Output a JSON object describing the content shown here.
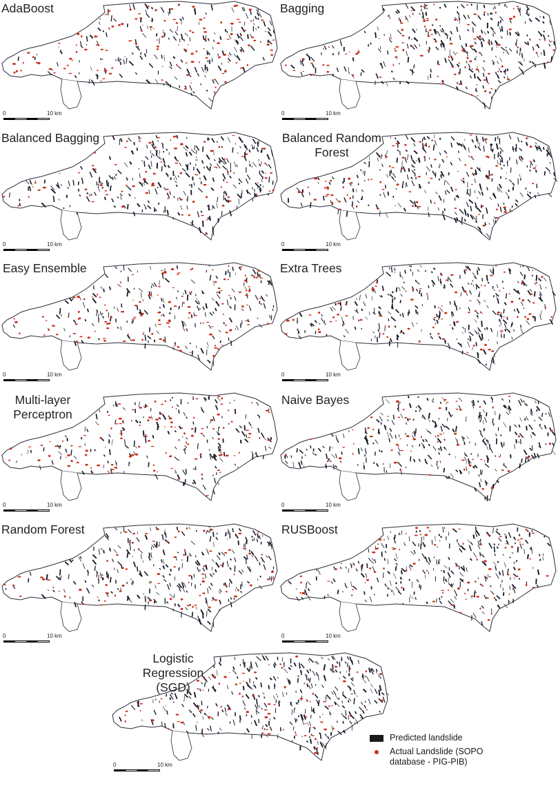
{
  "panels": [
    {
      "title": "AdaBoost",
      "density": 0.55,
      "red": 0.55,
      "seed": 11
    },
    {
      "title": "Bagging",
      "density": 0.7,
      "red": 0.45,
      "seed": 23
    },
    {
      "title": "Balanced Bagging",
      "density": 0.8,
      "red": 0.35,
      "seed": 37
    },
    {
      "title": "Balanced Random Forest",
      "density": 0.8,
      "red": 0.35,
      "seed": 41
    },
    {
      "title": "Easy Ensemble",
      "density": 0.5,
      "red": 0.6,
      "seed": 53
    },
    {
      "title": "Extra Trees",
      "density": 0.75,
      "red": 0.4,
      "seed": 67
    },
    {
      "title": "Multi-layer Perceptron",
      "density": 0.5,
      "red": 0.55,
      "seed": 71
    },
    {
      "title": "Naive Bayes",
      "density": 0.85,
      "red": 0.3,
      "seed": 89
    },
    {
      "title": "Random Forest",
      "density": 0.75,
      "red": 0.4,
      "seed": 97
    },
    {
      "title": "RUSBoost",
      "density": 0.72,
      "red": 0.42,
      "seed": 101
    },
    {
      "title": "Logistic Regression (SGD)",
      "density": 0.82,
      "red": 0.35,
      "seed": 113
    }
  ],
  "scalebar": {
    "zero": "0",
    "ten": "10 km"
  },
  "legend": {
    "predicted_label": "Predicted landslide",
    "actual_label": "Actual Landslide (SOPO database - PIG-PIB)",
    "predicted_color": "#1b1b1b",
    "actual_color": "#c8301a"
  },
  "colors": {
    "outline": "#2b2b3a",
    "predicted": "#1b1b2a",
    "actual": "#c8301a"
  }
}
